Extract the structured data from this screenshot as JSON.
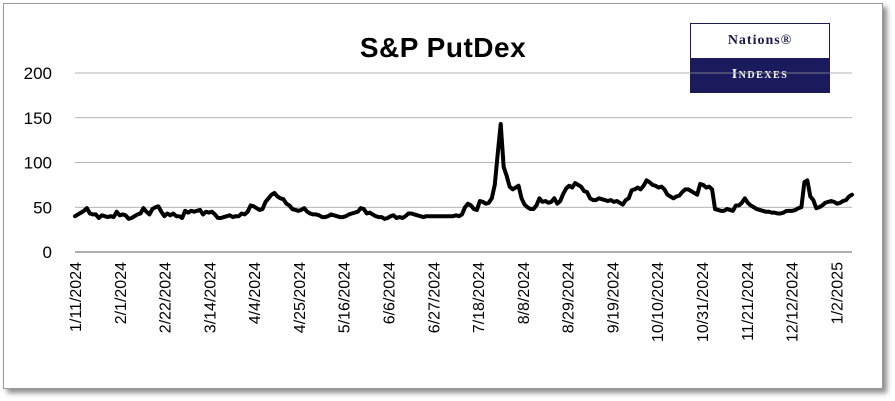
{
  "chart_data": {
    "type": "line",
    "title": "S&P  PutDex",
    "xlabel": "",
    "ylabel": "",
    "ylim": [
      0,
      200
    ],
    "yticks": [
      0,
      50,
      100,
      150,
      200
    ],
    "grid": true,
    "legend": "none",
    "xtick_labels": [
      "1/11/2024",
      "2/1/2024",
      "2/22/2024",
      "3/14/2024",
      "4/4/2024",
      "4/25/2024",
      "5/16/2024",
      "6/6/2024",
      "6/27/2024",
      "7/18/2024",
      "8/8/2024",
      "8/29/2024",
      "9/19/2024",
      "10/10/2024",
      "10/31/2024",
      "11/21/2024",
      "12/12/2024",
      "1/2/2025"
    ],
    "series": [
      {
        "color": "#000000",
        "values": [
          40,
          42,
          44,
          46,
          49,
          43,
          42,
          42,
          38,
          41,
          40,
          39,
          40,
          39,
          45,
          41,
          42,
          41,
          37,
          38,
          40,
          42,
          43,
          49,
          45,
          42,
          48,
          50,
          51,
          45,
          40,
          43,
          41,
          43,
          40,
          40,
          38,
          46,
          44,
          46,
          45,
          46,
          47,
          42,
          45,
          44,
          45,
          42,
          38,
          38,
          39,
          40,
          41,
          39,
          40,
          40,
          43,
          42,
          45,
          52,
          51,
          49,
          47,
          48,
          56,
          60,
          64,
          66,
          62,
          60,
          59,
          54,
          52,
          48,
          47,
          46,
          47,
          49,
          45,
          43,
          42,
          42,
          41,
          39,
          39,
          40,
          42,
          41,
          40,
          39,
          39,
          40,
          42,
          43,
          44,
          45,
          49,
          48,
          43,
          44,
          42,
          40,
          39,
          39,
          37,
          38,
          40,
          41,
          38,
          39,
          38,
          40,
          43,
          43,
          42,
          41,
          40,
          39,
          40,
          40,
          40,
          40,
          40,
          40,
          40,
          40,
          40,
          40,
          41,
          40,
          42,
          50,
          54,
          52,
          48,
          47,
          57,
          56,
          54,
          55,
          60,
          75,
          110,
          143,
          95,
          85,
          73,
          70,
          72,
          74,
          60,
          53,
          50,
          48,
          48,
          52,
          60,
          56,
          57,
          55,
          56,
          60,
          54,
          57,
          65,
          71,
          74,
          72,
          77,
          75,
          73,
          68,
          67,
          60,
          58,
          58,
          60,
          59,
          58,
          57,
          58,
          56,
          57,
          55,
          53,
          58,
          60,
          69,
          70,
          72,
          70,
          74,
          80,
          78,
          75,
          74,
          72,
          73,
          70,
          64,
          62,
          60,
          62,
          63,
          67,
          70,
          70,
          68,
          66,
          64,
          76,
          75,
          72,
          73,
          70,
          48,
          47,
          46,
          46,
          48,
          47,
          46,
          52,
          52,
          55,
          60,
          55,
          52,
          50,
          48,
          47,
          46,
          45,
          45,
          44,
          44,
          43,
          43,
          44,
          46,
          46,
          46,
          47,
          49,
          50,
          78,
          80,
          62,
          58,
          49,
          50,
          52,
          55,
          56,
          57,
          56,
          54,
          55,
          57,
          58,
          62,
          64
        ]
      }
    ]
  },
  "logo": {
    "top_text": "Nations®",
    "bottom_text": "Indexes"
  }
}
